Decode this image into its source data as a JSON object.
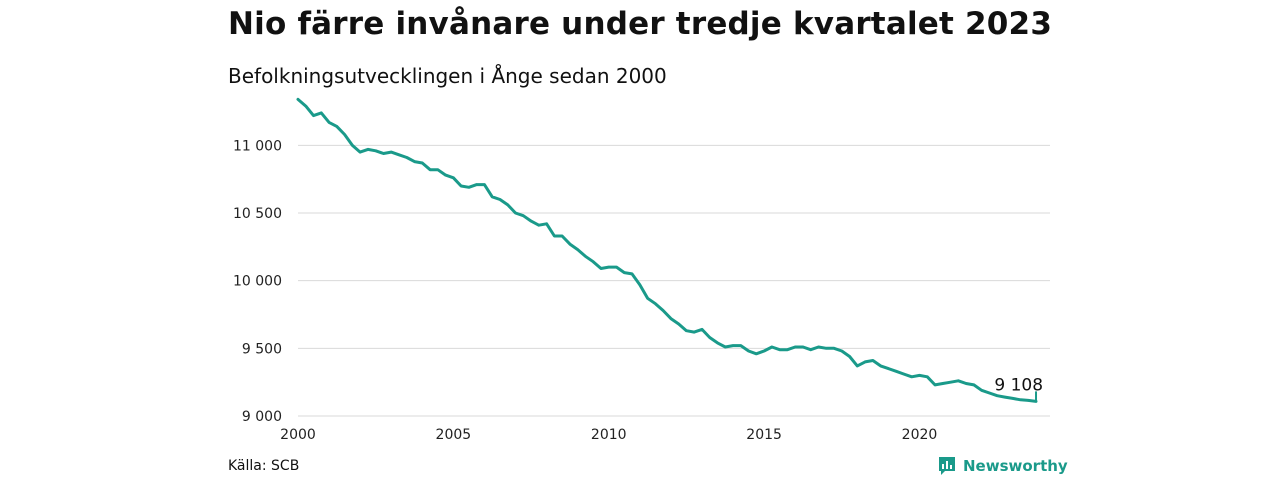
{
  "header": {
    "title": "Nio färre invånare under tredje kvartalet 2023",
    "subtitle": "Befolkningsutvecklingen i Ånge sedan 2000"
  },
  "footer": {
    "source": "Källa: SCB",
    "brand": "Newsworthy",
    "brand_color": "#1a9a8a"
  },
  "chart_data": {
    "type": "line",
    "title": "Nio färre invånare under tredje kvartalet 2023",
    "subtitle": "Befolkningsutvecklingen i Ånge sedan 2000",
    "xlabel": "",
    "ylabel": "",
    "xlim": [
      2000,
      2024.2
    ],
    "ylim": [
      9000,
      11350
    ],
    "x_ticks": [
      2000,
      2005,
      2010,
      2015,
      2020
    ],
    "x_tick_labels": [
      "2000",
      "2005",
      "2010",
      "2015",
      "2020"
    ],
    "y_ticks": [
      9000,
      9500,
      10000,
      10500,
      11000
    ],
    "y_tick_labels": [
      "9 000",
      "9 500",
      "10 000",
      "10 500",
      "11 000"
    ],
    "grid": "horizontal",
    "line_color": "#1a9a8a",
    "end_label": "9 108",
    "series": [
      {
        "name": "",
        "x": [
          2000.0,
          2000.25,
          2000.5,
          2000.75,
          2001.0,
          2001.25,
          2001.5,
          2001.75,
          2002.0,
          2002.25,
          2002.5,
          2002.75,
          2003.0,
          2003.25,
          2003.5,
          2003.75,
          2004.0,
          2004.25,
          2004.5,
          2004.75,
          2005.0,
          2005.25,
          2005.5,
          2005.75,
          2006.0,
          2006.25,
          2006.5,
          2006.75,
          2007.0,
          2007.25,
          2007.5,
          2007.75,
          2008.0,
          2008.25,
          2008.5,
          2008.75,
          2009.0,
          2009.25,
          2009.5,
          2009.75,
          2010.0,
          2010.25,
          2010.5,
          2010.75,
          2011.0,
          2011.25,
          2011.5,
          2011.75,
          2012.0,
          2012.25,
          2012.5,
          2012.75,
          2013.0,
          2013.25,
          2013.5,
          2013.75,
          2014.0,
          2014.25,
          2014.5,
          2014.75,
          2015.0,
          2015.25,
          2015.5,
          2015.75,
          2016.0,
          2016.25,
          2016.5,
          2016.75,
          2017.0,
          2017.25,
          2017.5,
          2017.75,
          2018.0,
          2018.25,
          2018.5,
          2018.75,
          2019.0,
          2019.25,
          2019.5,
          2019.75,
          2020.0,
          2020.25,
          2020.5,
          2020.75,
          2021.0,
          2021.25,
          2021.5,
          2021.75,
          2022.0,
          2022.25,
          2022.5,
          2022.75,
          2023.0,
          2023.25,
          2023.5,
          2023.75
        ],
        "values": [
          11340,
          11290,
          11220,
          11240,
          11170,
          11140,
          11080,
          11000,
          10950,
          10970,
          10960,
          10940,
          10950,
          10930,
          10910,
          10880,
          10870,
          10820,
          10820,
          10780,
          10760,
          10700,
          10690,
          10710,
          10710,
          10620,
          10600,
          10560,
          10500,
          10480,
          10440,
          10410,
          10420,
          10330,
          10330,
          10270,
          10230,
          10180,
          10140,
          10090,
          10100,
          10100,
          10060,
          10050,
          9970,
          9870,
          9830,
          9780,
          9720,
          9680,
          9630,
          9620,
          9640,
          9580,
          9540,
          9510,
          9520,
          9520,
          9480,
          9460,
          9480,
          9510,
          9490,
          9490,
          9510,
          9510,
          9490,
          9510,
          9500,
          9500,
          9480,
          9440,
          9370,
          9400,
          9410,
          9370,
          9350,
          9330,
          9310,
          9290,
          9300,
          9290,
          9230,
          9240,
          9250,
          9260,
          9240,
          9230,
          9190,
          9170,
          9150,
          9140,
          9130,
          9120,
          9115,
          9108
        ]
      }
    ]
  }
}
